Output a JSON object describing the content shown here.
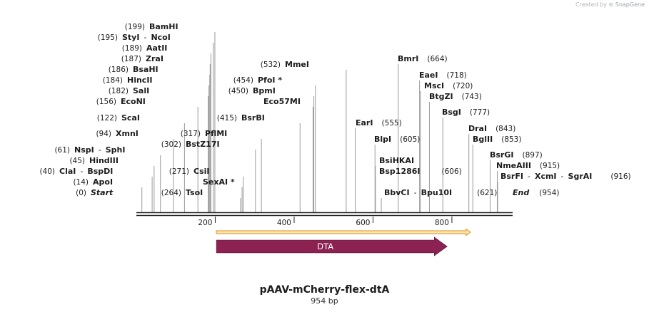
{
  "header": {
    "credit_text": "Created by",
    "brand": "SnapGene"
  },
  "plasmid": {
    "name": "pAAV-mCherry-flex-dtA",
    "length_label": "954 bp",
    "length_bp": 954
  },
  "sites": [
    {
      "name": "Start",
      "pos": "(0)",
      "bp": 0,
      "italic": true
    },
    {
      "name": "ApoI",
      "pos": "(14)",
      "bp": 14
    },
    {
      "name": "ClaI",
      "alias": "BspDI",
      "pos": "(40)",
      "bp": 40
    },
    {
      "name": "HindIII",
      "pos": "(45)",
      "bp": 45
    },
    {
      "name": "NspI",
      "alias": "SphI",
      "pos": "(61)",
      "bp": 61
    },
    {
      "name": "XmnI",
      "pos": "(94)",
      "bp": 94
    },
    {
      "name": "ScaI",
      "pos": "(122)",
      "bp": 122
    },
    {
      "name": "EcoNI",
      "pos": "(156)",
      "bp": 156
    },
    {
      "name": "SalI",
      "pos": "(182)",
      "bp": 182
    },
    {
      "name": "HincII",
      "pos": "(184)",
      "bp": 184
    },
    {
      "name": "BsaHI",
      "pos": "(186)",
      "bp": 186
    },
    {
      "name": "ZraI",
      "pos": "(187)",
      "bp": 187
    },
    {
      "name": "AatII",
      "pos": "(189)",
      "bp": 189
    },
    {
      "name": "StyI",
      "alias": "NcoI",
      "pos": "(195)",
      "bp": 195
    },
    {
      "name": "BamHI",
      "pos": "(199)",
      "bp": 199
    },
    {
      "name": "TsoI",
      "pos": "(264)",
      "bp": 264
    },
    {
      "name": "SexAI *",
      "bp": 268
    },
    {
      "name": "CsiI",
      "pos": "(271)",
      "bp": 271
    },
    {
      "name": "BstZ17I",
      "pos": "(302)",
      "bp": 302
    },
    {
      "name": "PflMI",
      "pos": "(317)",
      "bp": 317
    },
    {
      "name": "BsrBI",
      "pos": "(415)",
      "bp": 415
    },
    {
      "name": "Eco57MI",
      "bp": 448
    },
    {
      "name": "BpmI",
      "pos": "(450)",
      "bp": 450
    },
    {
      "name": "PfoI *",
      "pos": "(454)",
      "bp": 454
    },
    {
      "name": "MmeI",
      "pos": "(532)",
      "bp": 532
    },
    {
      "name": "EarI",
      "pos": "(555)",
      "bp": 555
    },
    {
      "name": "BlpI",
      "pos": "(605)",
      "bp": 605
    },
    {
      "name": "BsiHKAI",
      "bp": 606
    },
    {
      "name": "Bsp1286I",
      "pos": "(606)",
      "bp": 606
    },
    {
      "name": "BbvCI",
      "alias": "Bpu10I",
      "pos": "(621)",
      "bp": 621
    },
    {
      "name": "BmrI",
      "pos": "(664)",
      "bp": 664
    },
    {
      "name": "EaeI",
      "pos": "(718)",
      "bp": 718
    },
    {
      "name": "MscI",
      "pos": "(720)",
      "bp": 720
    },
    {
      "name": "BtgZI",
      "pos": "(743)",
      "bp": 743
    },
    {
      "name": "BsgI",
      "pos": "(777)",
      "bp": 777
    },
    {
      "name": "DraI",
      "pos": "(843)",
      "bp": 843
    },
    {
      "name": "BglII",
      "pos": "(853)",
      "bp": 853
    },
    {
      "name": "BsrGI",
      "pos": "(897)",
      "bp": 897
    },
    {
      "name": "NmeAIII",
      "pos": "(915)",
      "bp": 915
    },
    {
      "name": "BsrFI",
      "alias": "XcmI",
      "alias2": "SgrAI",
      "pos": "(916)",
      "bp": 916
    },
    {
      "name": "End",
      "pos": "(954)",
      "bp": 954,
      "italic": true
    }
  ],
  "axis": {
    "ticks": [
      200,
      400,
      600,
      800
    ]
  },
  "features": [
    {
      "name": "DTA",
      "start_bp": 203,
      "end_bp": 788,
      "color": "#8b2252",
      "label_color": "#ffffff"
    }
  ],
  "orf": {
    "start_bp": 203,
    "end_bp": 847,
    "color": "#e8a432",
    "fill": "#fbe6c2"
  }
}
